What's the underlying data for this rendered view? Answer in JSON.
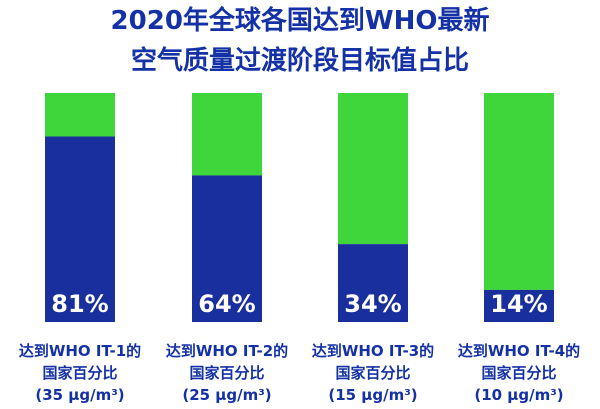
{
  "chart_data": {
    "type": "bar",
    "stacked": true,
    "title_line1": "2020年全球各国达到WHO最新",
    "title_line2": "空气质量过渡阶段目标值占比",
    "ylim": [
      0,
      100
    ],
    "categories": [
      {
        "line1": "达到WHO IT-1的",
        "line2": "国家百分比",
        "line3": "(35 μg/m³)"
      },
      {
        "line1": "达到WHO IT-2的",
        "line2": "国家百分比",
        "line3": "(25 μg/m³)"
      },
      {
        "line1": "达到WHO IT-3的",
        "line2": "国家百分比",
        "line3": "(15 μg/m³)"
      },
      {
        "line1": "达到WHO IT-4的",
        "line2": "国家百分比",
        "line3": "(10 μg/m³)"
      }
    ],
    "values": [
      81,
      64,
      34,
      14
    ],
    "value_labels": [
      "81%",
      "64%",
      "34%",
      "14%"
    ],
    "colors": {
      "achieved": "#1a2f9e",
      "remainder": "#3ed63b",
      "title": "#1531a6",
      "bar_label": "#ffffff"
    }
  }
}
